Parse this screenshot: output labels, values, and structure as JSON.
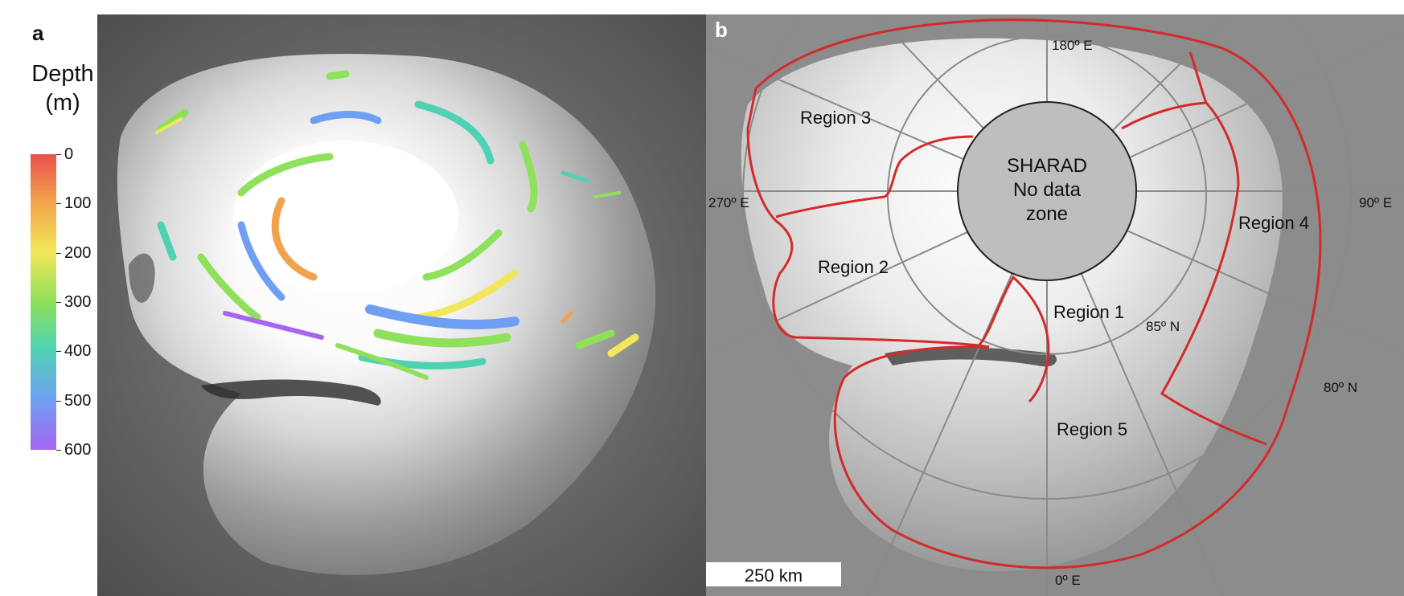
{
  "panel_a": {
    "letter": "a",
    "colorbar": {
      "title_line1": "Depth",
      "title_line2": "(m)",
      "ticks": [
        "0",
        "100",
        "200",
        "300",
        "400",
        "500",
        "600"
      ],
      "range": [
        0,
        600
      ],
      "colors": [
        "#e8504e",
        "#f2a24c",
        "#f2e75a",
        "#8fe05a",
        "#4fd2b4",
        "#6f9ff2",
        "#a566f2"
      ]
    }
  },
  "panel_b": {
    "letter": "b",
    "no_data_zone": {
      "line1": "SHARAD",
      "line2": "No data",
      "line3": "zone"
    },
    "longitude_labels": {
      "north_top": "180º E",
      "east_right": "90º E",
      "west_left": "270º E",
      "bottom": "0º E"
    },
    "latitude_labels": {
      "inner": "85º N",
      "outer": "80º N"
    },
    "regions": {
      "r1": "Region 1",
      "r2": "Region 2",
      "r3": "Region 3",
      "r4": "Region 4",
      "r5": "Region 5"
    },
    "scale_bar": "250 km",
    "boundary_color": "#d42a2a"
  }
}
